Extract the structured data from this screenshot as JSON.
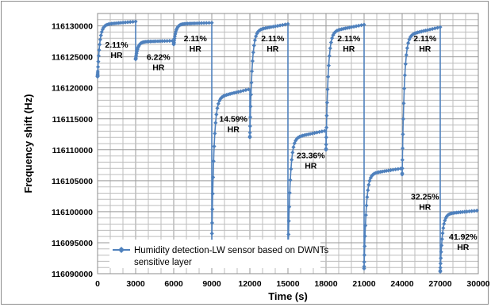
{
  "chart_data": {
    "type": "scatter",
    "title": "",
    "xlabel": "Time (s)",
    "ylabel": "Frequency shift (Hz)",
    "xlim": [
      0,
      30000
    ],
    "ylim": [
      116090000,
      116132000
    ],
    "grid": true,
    "legend_position": "bottom-left",
    "x_ticks": [
      0,
      3000,
      6000,
      9000,
      12000,
      15000,
      18000,
      21000,
      24000,
      27000,
      30000
    ],
    "y_ticks": [
      116090000,
      116095000,
      116100000,
      116105000,
      116110000,
      116115000,
      116120000,
      116125000,
      116130000
    ],
    "series": [
      {
        "name": "Humidity detection-LW sensor based on DWNTs sensitive layer",
        "color": "#4f81bd",
        "segments": [
          {
            "start": 0,
            "end": 3000,
            "from": 116121800,
            "plateau": 116130700
          },
          {
            "start": 3000,
            "end": 6000,
            "from": 116124600,
            "plateau": 116127600
          },
          {
            "start": 6000,
            "end": 9000,
            "from": 116127000,
            "plateau": 116130500
          },
          {
            "start": 9000,
            "end": 12000,
            "from": 116094800,
            "plateau": 116119800
          },
          {
            "start": 12000,
            "end": 15000,
            "from": 116112000,
            "plateau": 116130300
          },
          {
            "start": 15000,
            "end": 18000,
            "from": 116091500,
            "plateau": 116113100
          },
          {
            "start": 18000,
            "end": 21000,
            "from": 116110000,
            "plateau": 116130200
          },
          {
            "start": 21000,
            "end": 24000,
            "from": 116090800,
            "plateau": 116107000
          },
          {
            "start": 24000,
            "end": 27000,
            "from": 116106000,
            "plateau": 116129800
          },
          {
            "start": 27000,
            "end": 30000,
            "from": 116090300,
            "plateau": 116100200
          }
        ]
      }
    ],
    "annotations": [
      {
        "lines": [
          "2.11%",
          "HR"
        ],
        "x": 1500,
        "y": 116126500
      },
      {
        "lines": [
          "6.22%",
          "HR"
        ],
        "x": 4800,
        "y": 116124500
      },
      {
        "lines": [
          "2.11%",
          "HR"
        ],
        "x": 7700,
        "y": 116127500
      },
      {
        "lines": [
          "14.59%",
          "HR"
        ],
        "x": 10700,
        "y": 116114500
      },
      {
        "lines": [
          "2.11%",
          "HR"
        ],
        "x": 13800,
        "y": 116127500
      },
      {
        "lines": [
          "23.36%",
          "HR"
        ],
        "x": 16800,
        "y": 116108600
      },
      {
        "lines": [
          "2.11%",
          "HR"
        ],
        "x": 19800,
        "y": 116127500
      },
      {
        "lines": [
          "32.25%",
          "HR"
        ],
        "x": 25800,
        "y": 116102000
      },
      {
        "lines": [
          "2.11%",
          "HR"
        ],
        "x": 25800,
        "y": 116127500
      },
      {
        "lines": [
          "41.92%",
          "HR"
        ],
        "x": 28800,
        "y": 116095500
      }
    ]
  }
}
